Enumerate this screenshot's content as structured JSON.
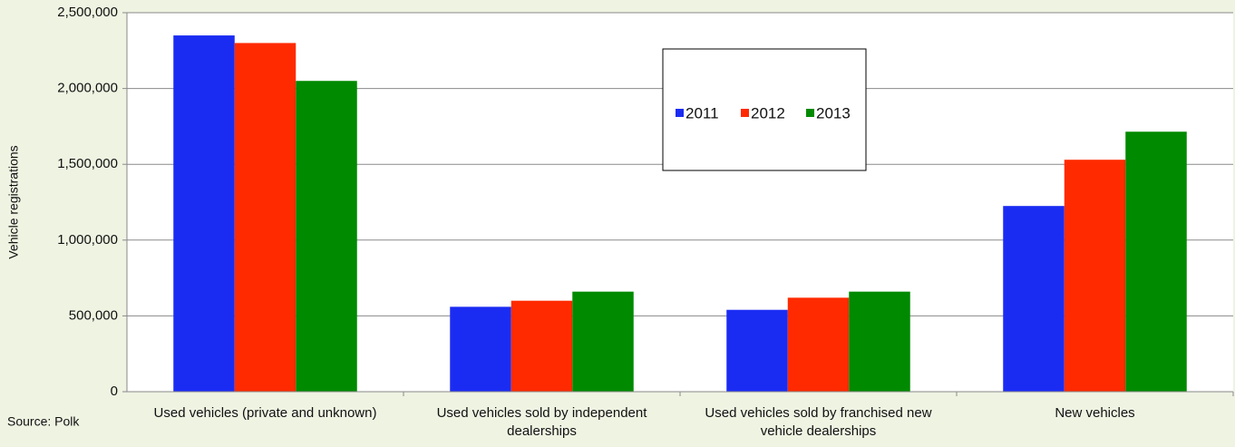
{
  "chart_data": {
    "type": "bar",
    "categories": [
      "Used vehicles (private and unknown)",
      "Used vehicles sold by independent dealerships",
      "Used vehicles sold by franchised new vehicle dealerships",
      "New vehicles"
    ],
    "series": [
      {
        "name": "2011",
        "color": "#1b2cf2",
        "values": [
          2350000,
          560000,
          540000,
          1225000
        ]
      },
      {
        "name": "2012",
        "color": "#ff2a00",
        "values": [
          2300000,
          600000,
          620000,
          1530000
        ]
      },
      {
        "name": "2013",
        "color": "#008a00",
        "values": [
          2050000,
          660000,
          660000,
          1715000
        ]
      }
    ],
    "ylabel": "Vehicle registrations",
    "annotation": "Source: Polk",
    "ylim": [
      0,
      2500000
    ],
    "yticks": [
      0,
      {
        "value": 500000,
        "label": "500,000"
      },
      {
        "value": 1000000,
        "label": "1,000,000"
      },
      {
        "value": 1500000,
        "label": "1,500,000"
      },
      {
        "value": 2000000,
        "label": "2,000,000"
      },
      {
        "value": 2500000,
        "label": "2,500,000"
      }
    ],
    "grid": true
  }
}
